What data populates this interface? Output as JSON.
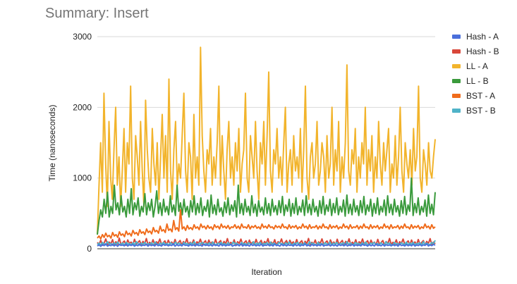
{
  "chart_data": {
    "type": "line",
    "title": "Summary: Insert",
    "xlabel": "Iteration",
    "ylabel": "Time (nanoseconds)",
    "ylim": [
      0,
      3000
    ],
    "yticks": [
      0,
      1000,
      2000,
      3000
    ],
    "grid": true,
    "legend_position": "right",
    "x_count": 200,
    "series": [
      {
        "name": "Hash - A",
        "color": "#4a6fdb",
        "values": [
          40,
          55,
          35,
          60,
          45,
          70,
          38,
          52,
          44,
          66,
          40,
          58,
          36,
          62,
          48,
          54,
          42,
          68,
          39,
          57,
          46,
          61,
          37,
          55,
          43,
          69,
          41,
          53,
          47,
          64,
          38,
          59,
          45,
          56,
          40,
          67,
          44,
          52,
          39,
          63,
          48,
          58,
          42,
          54,
          46,
          70,
          37,
          60,
          43,
          55,
          41,
          66,
          48,
          52,
          39,
          61,
          45,
          57,
          40,
          68,
          44,
          53,
          38,
          65,
          47,
          56,
          42,
          59,
          40,
          62,
          46,
          54,
          39,
          67,
          43,
          58,
          41,
          55,
          48,
          63,
          37,
          52,
          45,
          60,
          42,
          69,
          40,
          57,
          44,
          54,
          38,
          64,
          46,
          58,
          41,
          55,
          43,
          66,
          39,
          53,
          47,
          61,
          42,
          56,
          40,
          68,
          45,
          52,
          38,
          63,
          44,
          59,
          41,
          57,
          48,
          54,
          39,
          65,
          43,
          60,
          40,
          55,
          46,
          70,
          42,
          53,
          38,
          62,
          45,
          58,
          41,
          56,
          44,
          67,
          39,
          52,
          47,
          64,
          40,
          59,
          43,
          55,
          38,
          61,
          46,
          57,
          42,
          69,
          40,
          53,
          45,
          63,
          39,
          58,
          44,
          54,
          41,
          66,
          48,
          56,
          38,
          60,
          43,
          57,
          40,
          68,
          45,
          52,
          42,
          64,
          39,
          59,
          47,
          55,
          41,
          62,
          44,
          58,
          38,
          67,
          46,
          53,
          40,
          61,
          43,
          56,
          42,
          65,
          39,
          54,
          45,
          60,
          41,
          57,
          48,
          69,
          40,
          55,
          44,
          63,
          50
        ]
      },
      {
        "name": "Hash - B",
        "color": "#d9473a",
        "values": [
          90,
          60,
          120,
          50,
          80,
          140,
          55,
          95,
          70,
          130,
          45,
          100,
          65,
          150,
          60,
          85,
          110,
          50,
          125,
          75,
          95,
          55,
          135,
          68,
          88,
          115,
          52,
          105,
          72,
          145,
          58,
          92,
          66,
          128,
          49,
          98,
          78,
          138,
          62,
          87,
          112,
          54,
          122,
          70,
          96,
          57,
          132,
          64,
          89,
          118,
          51,
          102,
          74,
          142,
          59,
          93,
          67,
          126,
          48,
          99,
          76,
          136,
          63,
          86,
          114,
          53,
          124,
          71,
          97,
          56,
          134,
          65,
          90,
          116,
          50,
          104,
          73,
          144,
          60,
          91,
          68,
          127,
          47,
          100,
          77,
          137,
          61,
          88,
          113,
          55,
          123,
          69,
          95,
          58,
          133,
          66,
          87,
          119,
          52,
          103,
          75,
          143,
          57,
          94,
          65,
          129,
          48,
          101,
          79,
          139,
          62,
          86,
          117,
          54,
          121,
          72,
          98,
          56,
          131,
          67,
          89,
          115,
          51,
          106,
          74,
          146,
          59,
          92,
          68,
          125,
          46,
          97,
          78,
          140,
          63,
          88,
          111,
          53,
          126,
          70,
          96,
          57,
          135,
          64,
          90,
          118,
          50,
          104,
          73,
          141,
          58,
          93,
          66,
          128,
          49,
          99,
          76,
          138,
          61,
          87,
          114,
          55,
          122,
          71,
          95,
          56,
          133,
          65,
          89,
          117,
          52,
          102,
          75,
          145,
          60,
          92,
          67,
          127,
          48,
          100,
          77,
          137,
          62,
          86,
          112,
          54,
          124,
          69,
          97,
          58,
          131,
          66,
          88,
          116,
          51,
          105,
          74,
          143,
          59,
          94,
          70
        ]
      },
      {
        "name": "LL - A",
        "color": "#f2b42c",
        "values": [
          200,
          900,
          1500,
          800,
          2200,
          1200,
          600,
          1800,
          1000,
          700,
          1400,
          2000,
          900,
          1300,
          600,
          1100,
          1700,
          800,
          1500,
          1200,
          2300,
          1000,
          700,
          1600,
          1300,
          900,
          1800,
          1100,
          600,
          2100,
          1400,
          1000,
          800,
          1700,
          1200,
          900,
          1500,
          700,
          1300,
          1900,
          1000,
          1600,
          800,
          2400,
          1100,
          700,
          1400,
          1800,
          900,
          1200,
          1000,
          1600,
          2200,
          1100,
          800,
          1500,
          1300,
          700,
          1900,
          1000,
          1300,
          900,
          2850,
          1600,
          1100,
          800,
          1400,
          1200,
          1700,
          900,
          1300,
          1000,
          1500,
          2300,
          900,
          1600,
          1100,
          700,
          1400,
          1800,
          1000,
          1300,
          900,
          1500,
          1100,
          1700,
          800,
          1200,
          1400,
          2200,
          1000,
          800,
          1600,
          1300,
          1000,
          1800,
          1100,
          700,
          1500,
          1200,
          1800,
          900,
          1600,
          2500,
          1100,
          800,
          1400,
          1200,
          1700,
          1000,
          1300,
          900,
          1500,
          2000,
          800,
          1200,
          1400,
          900,
          1600,
          1100,
          1300,
          1000,
          1700,
          800,
          1400,
          2300,
          1000,
          700,
          1300,
          1500,
          1000,
          1200,
          1800,
          900,
          1100,
          1500,
          1300,
          800,
          1600,
          1000,
          1200,
          2000,
          900,
          1400,
          1100,
          1800,
          800,
          1300,
          1000,
          1500,
          2600,
          1100,
          900,
          1400,
          1200,
          1700,
          800,
          1300,
          1000,
          1500,
          1200,
          2000,
          900,
          1400,
          1100,
          1600,
          800,
          1300,
          1000,
          1800,
          1200,
          900,
          1500,
          1100,
          1400,
          1700,
          800,
          1200,
          1000,
          1600,
          900,
          1300,
          2000,
          1100,
          800,
          1500,
          1200,
          1000,
          1400,
          900,
          1700,
          1100,
          1300,
          2300,
          1000,
          800,
          1400,
          1200,
          900,
          1500,
          1100,
          1000,
          1300,
          1550
        ]
      },
      {
        "name": "LL - B",
        "color": "#3a9a3c",
        "values": [
          200,
          400,
          550,
          450,
          700,
          500,
          800,
          450,
          600,
          500,
          900,
          550,
          650,
          480,
          750,
          520,
          600,
          450,
          700,
          500,
          850,
          480,
          650,
          550,
          720,
          460,
          600,
          520,
          780,
          480,
          650,
          540,
          700,
          450,
          600,
          820,
          500,
          650,
          470,
          700,
          520,
          600,
          480,
          750,
          520,
          620,
          470,
          900,
          530,
          650,
          480,
          700,
          520,
          600,
          450,
          680,
          520,
          750,
          480,
          640,
          510,
          720,
          470,
          600,
          530,
          690,
          450,
          760,
          500,
          620,
          480,
          700,
          520,
          580,
          460,
          660,
          510,
          720,
          480,
          620,
          530,
          680,
          450,
          900,
          500,
          640,
          480,
          700,
          520,
          600,
          470,
          750,
          510,
          630,
          460,
          680,
          520,
          590,
          480,
          720,
          500,
          640,
          470,
          700,
          520,
          610,
          480,
          680,
          510,
          740,
          470,
          620,
          530,
          700,
          460,
          640,
          500,
          720,
          480,
          600,
          520,
          690,
          470,
          750,
          510,
          630,
          480,
          700,
          520,
          600,
          460,
          680,
          500,
          740,
          480,
          620,
          530,
          700,
          470,
          640,
          510,
          720,
          480,
          600,
          520,
          690,
          460,
          760,
          500,
          630,
          480,
          700,
          520,
          610,
          470,
          680,
          510,
          740,
          480,
          620,
          530,
          700,
          460,
          640,
          500,
          720,
          480,
          600,
          520,
          690,
          470,
          750,
          510,
          630,
          480,
          700,
          520,
          610,
          460,
          680,
          500,
          740,
          480,
          620,
          530,
          1000,
          470,
          640,
          510,
          720,
          480,
          600,
          520,
          690,
          460,
          760,
          500,
          630,
          480,
          800
        ]
      },
      {
        "name": "BST - A",
        "color": "#f06c1c",
        "values": [
          150,
          180,
          140,
          200,
          160,
          220,
          170,
          190,
          150,
          230,
          180,
          200,
          160,
          240,
          190,
          210,
          170,
          250,
          200,
          220,
          180,
          260,
          210,
          230,
          190,
          270,
          220,
          240,
          200,
          280,
          230,
          250,
          210,
          300,
          240,
          260,
          220,
          320,
          250,
          270,
          230,
          350,
          260,
          280,
          240,
          400,
          270,
          300,
          250,
          550,
          280,
          310,
          260,
          330,
          280,
          300,
          270,
          340,
          290,
          310,
          270,
          350,
          300,
          320,
          280,
          330,
          290,
          310,
          270,
          340,
          300,
          320,
          280,
          350,
          300,
          320,
          290,
          330,
          280,
          310,
          300,
          340,
          290,
          320,
          280,
          350,
          300,
          310,
          290,
          340,
          280,
          320,
          300,
          330,
          290,
          310,
          280,
          350,
          300,
          320,
          290,
          340,
          300,
          310,
          280,
          330,
          300,
          320,
          290,
          350,
          300,
          310,
          280,
          340,
          290,
          320,
          300,
          330,
          280,
          310,
          290,
          350,
          300,
          320,
          280,
          340,
          290,
          310,
          300,
          330,
          280,
          320,
          290,
          350,
          300,
          310,
          280,
          340,
          290,
          320,
          300,
          330,
          280,
          310,
          290,
          350,
          300,
          320,
          280,
          340,
          290,
          310,
          300,
          330,
          280,
          320,
          290,
          350,
          300,
          310,
          280,
          340,
          290,
          320,
          300,
          330,
          280,
          310,
          290,
          350,
          300,
          320,
          280,
          340,
          290,
          310,
          300,
          330,
          280,
          320,
          290,
          350,
          300,
          310,
          280,
          340,
          290,
          320,
          300,
          330,
          280,
          310,
          290,
          350,
          300,
          320,
          280,
          340,
          290,
          310
        ]
      },
      {
        "name": "BST - B",
        "color": "#4fb3c8",
        "values": [
          60,
          80,
          50,
          90,
          70,
          55,
          100,
          65,
          75,
          50,
          85,
          60,
          95,
          55,
          70,
          80,
          50,
          90,
          65,
          75,
          55,
          85,
          60,
          100,
          70,
          50,
          80,
          65,
          90,
          55,
          75,
          60,
          85,
          50,
          95,
          70,
          55,
          80,
          65,
          90,
          60,
          75,
          50,
          85,
          70,
          55,
          95,
          60,
          80,
          65,
          50,
          90,
          70,
          75,
          55,
          85,
          60,
          100,
          65,
          50,
          80,
          70,
          90,
          55,
          75,
          60,
          85,
          50,
          95,
          65,
          55,
          80,
          70,
          90,
          60,
          75,
          50,
          85,
          65,
          55,
          95,
          70,
          80,
          60,
          50,
          90,
          65,
          75,
          55,
          85,
          70,
          60,
          100,
          50,
          80,
          65,
          90,
          55,
          75,
          70,
          85,
          50,
          95,
          60,
          80,
          65,
          55,
          90,
          70,
          75,
          50,
          85,
          60,
          95,
          65,
          55,
          80,
          70,
          90,
          60,
          75,
          50,
          85,
          65,
          55,
          100,
          70,
          80,
          60,
          50,
          90,
          65,
          75,
          55,
          85,
          70,
          60,
          95,
          50,
          80,
          65,
          90,
          55,
          75,
          70,
          85,
          50,
          100,
          60,
          80,
          65,
          55,
          90,
          70,
          75,
          50,
          85,
          60,
          95,
          65,
          55,
          80,
          70,
          90,
          60,
          75,
          50,
          85,
          65,
          55,
          100,
          70,
          80,
          60,
          50,
          90,
          65,
          75,
          55,
          85,
          70,
          60,
          95,
          50,
          80,
          65,
          90,
          55,
          75,
          70,
          85,
          50,
          100,
          60,
          80,
          65,
          55,
          90,
          70,
          120
        ]
      }
    ]
  }
}
